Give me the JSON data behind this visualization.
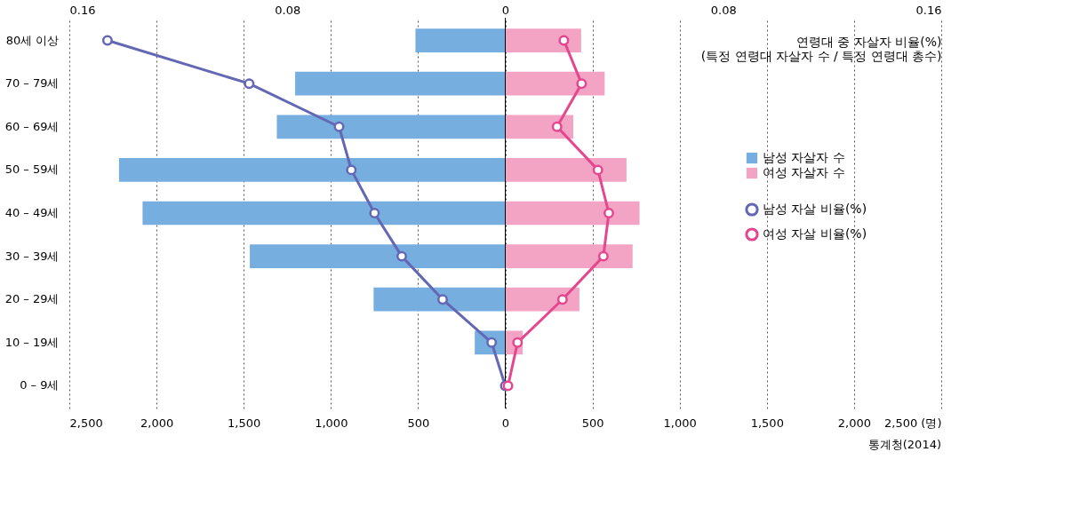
{
  "chart_data": {
    "type": "bar",
    "orientation": "horizontal",
    "categories": [
      "80세 이상",
      "70 – 79세",
      "60 – 69세",
      "50 – 59세",
      "40 – 49세",
      "30 – 39세",
      "20 – 29세",
      "10 – 19세",
      "0 – 9세"
    ],
    "series": [
      {
        "name": "남성 자살자 수",
        "color": "#77aee0",
        "values": [
          -515,
          -1205,
          -1310,
          -2215,
          -2080,
          -1465,
          -755,
          -175,
          null
        ]
      },
      {
        "name": "여성 자살자 수",
        "color": "#f3a3c3",
        "values": [
          435,
          570,
          390,
          695,
          770,
          730,
          425,
          100,
          null
        ]
      },
      {
        "name": "남성 자살 비율(%)",
        "type": "line",
        "axis": "x2",
        "color": "#6367b4",
        "values": [
          -0.146,
          -0.094,
          -0.061,
          -0.0565,
          -0.048,
          -0.038,
          -0.023,
          -0.005,
          0
        ]
      },
      {
        "name": "여성 자살 비율(%)",
        "type": "line",
        "axis": "x2",
        "color": "#e5478f",
        "values": [
          0.0215,
          0.028,
          0.019,
          0.034,
          0.038,
          0.036,
          0.021,
          0.0045,
          0.001
        ]
      }
    ],
    "xlim": [
      -2500,
      2500
    ],
    "xticks": [
      {
        "value": -2500,
        "label": "2,500"
      },
      {
        "value": -2000,
        "label": "2,000"
      },
      {
        "value": -1500,
        "label": "1,500"
      },
      {
        "value": -1000,
        "label": "1,000"
      },
      {
        "value": -500,
        "label": "500"
      },
      0,
      500,
      {
        "value": 1000,
        "label": "1,000"
      },
      {
        "value": 1500,
        "label": "1,500"
      },
      {
        "value": 2000,
        "label": "2,000"
      },
      {
        "value": 2500,
        "label": "2,500 (명)"
      }
    ],
    "x2lim": [
      -0.16,
      0.16
    ],
    "x2ticks": [
      {
        "value": -0.16,
        "label": "0.16"
      },
      {
        "value": -0.08,
        "label": "0.08"
      },
      {
        "value": 0,
        "label": "0"
      },
      0.08,
      0.16
    ],
    "stacked": true,
    "x2label": "연령대 중 자살자 비율(%)\n(특정 연령대 자살자 수 / 특정 연령대 총수)",
    "ref_lines": [
      {
        "axis": "x",
        "value": 0,
        "color": "#000000"
      }
    ],
    "grid": "x",
    "legend": "right",
    "marker": "circle",
    "line_style": "solid",
    "annotations": [
      "통계청(2014)"
    ]
  }
}
